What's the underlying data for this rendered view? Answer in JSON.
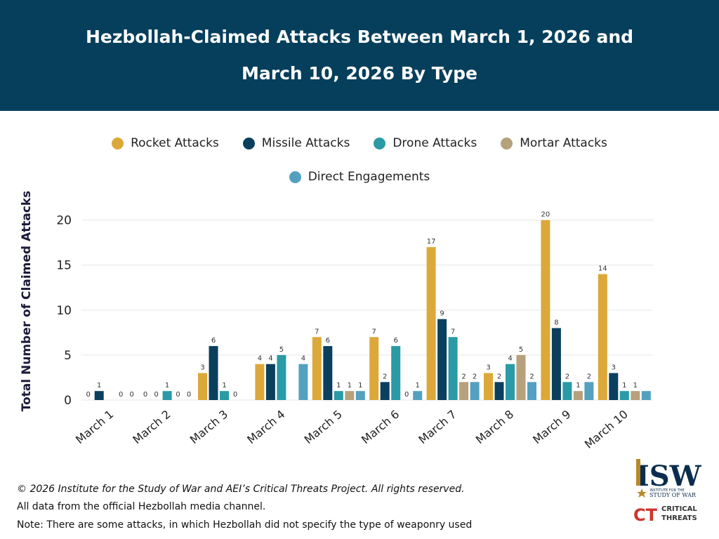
{
  "header": {
    "title_line1": "Hezbollah-Claimed Attacks Between March 1, 2026 and",
    "title_line2": "March 10, 2026 By Type"
  },
  "chart_data": {
    "type": "bar",
    "title": "Hezbollah-Claimed Attacks Between March 1, 2026 and March 10, 2026 By Type",
    "xlabel": "",
    "ylabel": "Total Number of Claimed Attacks",
    "ylim": [
      0,
      22
    ],
    "yticks": [
      0,
      5,
      10,
      15,
      20
    ],
    "grid": true,
    "legend_position": "top",
    "categories": [
      "March 1",
      "March 2",
      "March 3",
      "March 4",
      "March 5",
      "March 6",
      "March 7",
      "March 8",
      "March 9",
      "March 10"
    ],
    "series": [
      {
        "name": "Rocket Attacks",
        "color": "#dca83a",
        "values": [
          0,
          0,
          3,
          4,
          7,
          7,
          17,
          3,
          20,
          14
        ]
      },
      {
        "name": "Missile Attacks",
        "color": "#0b3f5e",
        "values": [
          1,
          0,
          6,
          4,
          6,
          2,
          9,
          2,
          8,
          3
        ]
      },
      {
        "name": "Drone Attacks",
        "color": "#2a9aa6",
        "values": [
          0,
          1,
          1,
          5,
          1,
          6,
          7,
          4,
          2,
          1
        ]
      },
      {
        "name": "Mortar Attacks",
        "color": "#b7a07c",
        "values": [
          0,
          0,
          0,
          0,
          1,
          0,
          2,
          5,
          1,
          1
        ]
      },
      {
        "name": "Direct Engagements",
        "color": "#54a0c0",
        "values": [
          0,
          0,
          0,
          4,
          1,
          1,
          2,
          2,
          2,
          1
        ]
      }
    ],
    "missing_labels": [
      {
        "series": 3,
        "category": 3
      },
      {
        "series": 4,
        "category": 2
      },
      {
        "series": 2,
        "category": 0
      },
      {
        "series": 4,
        "category": 9
      }
    ]
  },
  "footer": {
    "copyright": "© 2026 Institute for the Study of War and AEI’s Critical Threats Project. All rights reserved.",
    "source": "All data from the official Hezbollah media channel.",
    "note": "Note: There are some attacks, in which Hezbollah did not specify the type of weaponry used"
  },
  "logos": {
    "isw_text": "ISW",
    "isw_subtitle_1": "INSTITUTE FOR THE",
    "isw_subtitle_2": "STUDY OF WAR",
    "isw_color": "#0b2d4d",
    "ct_mark": "CT",
    "ct_text_1": "CRITICAL",
    "ct_text_2": "THREATS",
    "ct_color": "#d0342c"
  }
}
